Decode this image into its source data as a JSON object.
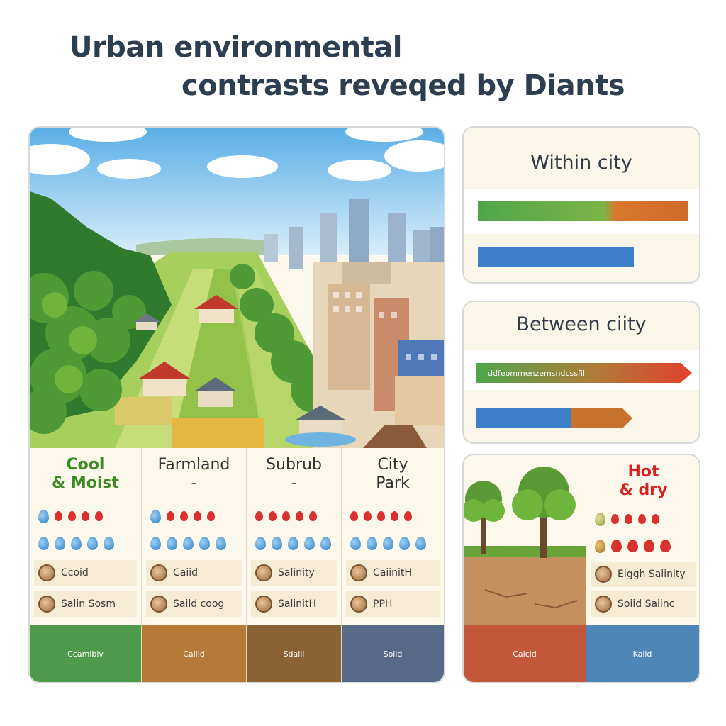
{
  "title": {
    "line1": "Urban environmental",
    "line2": "contrasts reveqed by Diants"
  },
  "within_city": {
    "title": "Within city"
  },
  "between_city": {
    "title": "Between ciity",
    "bar_text": "ddfeommenzemsndcssfill"
  },
  "columns": [
    {
      "head1": "Cool",
      "head2": "& Moist",
      "row3": "Ccoid",
      "row4": "Salin Sosm",
      "strip": "Ccamiblv"
    },
    {
      "head1": "Farmland",
      "head2": "-",
      "row3": "Caiid",
      "row4": "Saild coog",
      "strip": "Caiild"
    },
    {
      "head1": "Subrub",
      "head2": "-",
      "row3": "Salinity",
      "row4": "SalinitH",
      "strip": "Sdaiil"
    },
    {
      "head1": "City",
      "head2": "Park",
      "row3": "CaiinitH",
      "row4": "PPH",
      "strip": "Soiid"
    }
  ],
  "hot_column": {
    "head1": "Hot",
    "head2": "& dry",
    "row3": "Eiggh Salinity",
    "row4": "Soiid Saiinc",
    "strip_left": "Caicld",
    "strip_right": "Kaiid"
  },
  "colors": {
    "cool_green": "#3b8a23",
    "hot_red": "#d92020",
    "bar_green": "#4ea64a",
    "bar_orange": "#d8772d",
    "bar_blue": "#3b80c8",
    "bar_red": "#e2412b"
  }
}
